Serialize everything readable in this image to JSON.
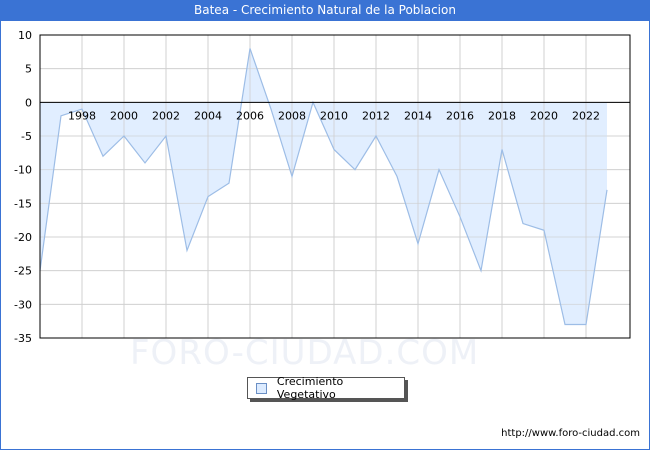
{
  "header": {
    "title": "Batea - Crecimiento Natural de la Poblacion"
  },
  "watermark": "FORO-CIUDAD.COM",
  "legend": {
    "label": "Crecimiento Vegetativo"
  },
  "footer": {
    "url": "http://www.foro-ciudad.com"
  },
  "colors": {
    "titlebar": "#3a73d4",
    "fill": "#dcebff",
    "line": "#9dbde6"
  },
  "chart_data": {
    "type": "area",
    "title": "Batea - Crecimiento Natural de la Poblacion",
    "xlabel": "",
    "ylabel": "",
    "ylim": [
      -35,
      10
    ],
    "yticks": [
      10,
      5,
      0,
      -5,
      -10,
      -15,
      -20,
      -25,
      -30,
      -35
    ],
    "xtick_labels": [
      "1998",
      "2000",
      "2002",
      "2004",
      "2006",
      "2008",
      "2010",
      "2012",
      "2014",
      "2016",
      "2018",
      "2020",
      "2022"
    ],
    "grid": true,
    "legend_position": "bottom",
    "x": [
      1996,
      1997,
      1998,
      1999,
      2000,
      2001,
      2002,
      2003,
      2004,
      2005,
      2006,
      2007,
      2008,
      2009,
      2010,
      2011,
      2012,
      2013,
      2014,
      2015,
      2016,
      2017,
      2018,
      2019,
      2020,
      2021,
      2022,
      2023
    ],
    "series": [
      {
        "name": "Crecimiento Vegetativo",
        "values": [
          -25,
          -2,
          -1,
          -8,
          -5,
          -9,
          -5,
          -22,
          -14,
          -12,
          8,
          -1,
          -11,
          0,
          -7,
          -10,
          -5,
          -11,
          -21,
          -10,
          -17,
          -25,
          -7,
          -18,
          -19,
          -33,
          -33,
          -13
        ]
      }
    ]
  }
}
